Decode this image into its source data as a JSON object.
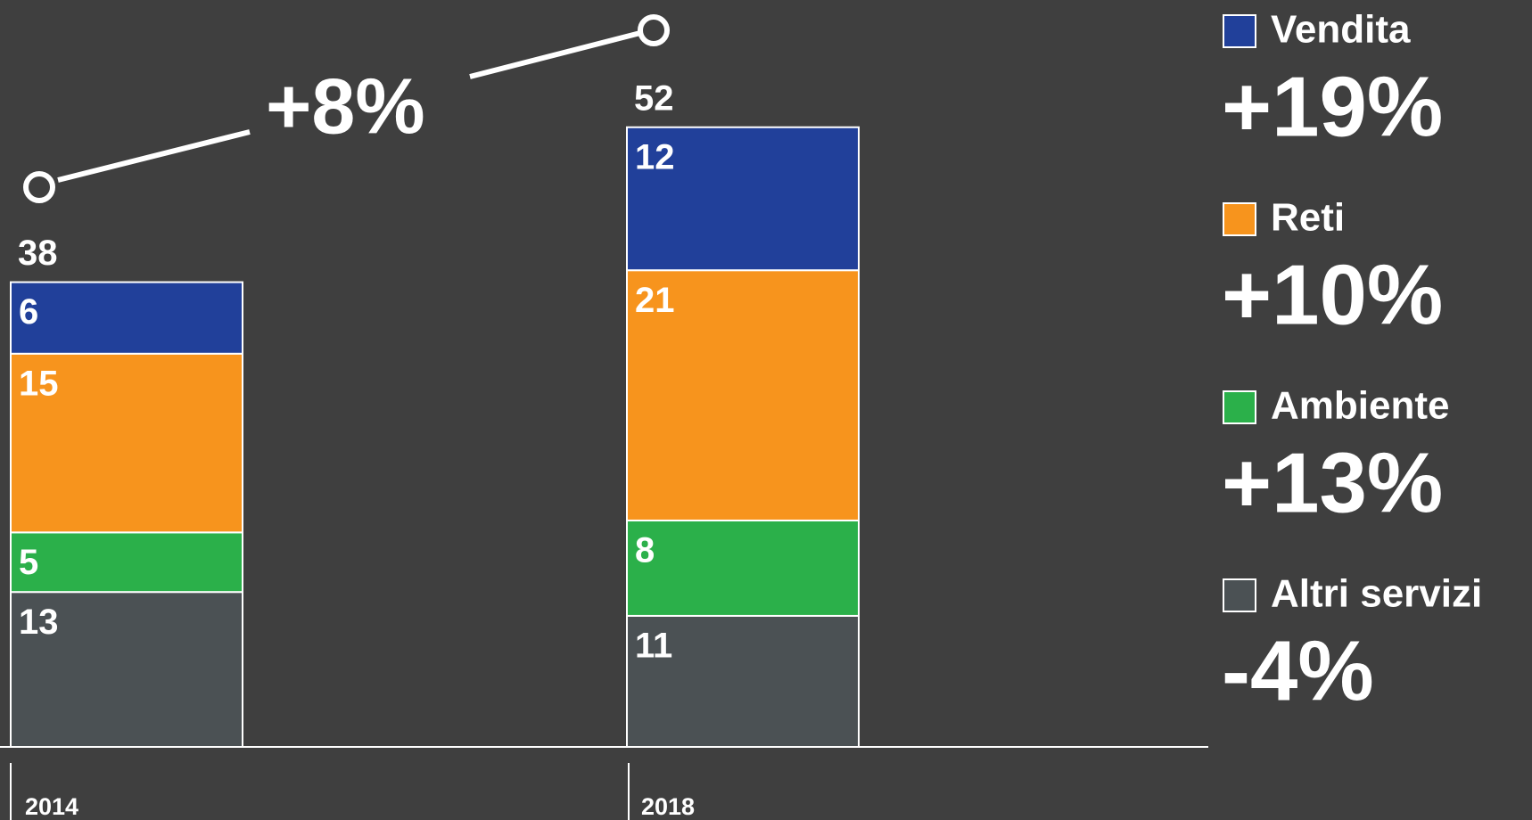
{
  "chart_data": {
    "type": "stacked-bar",
    "categories": [
      "2014",
      "2018"
    ],
    "series": [
      {
        "name": "Vendita",
        "color": "#21409a",
        "values": [
          6,
          12
        ],
        "growth": "+19%"
      },
      {
        "name": "Reti",
        "color": "#f7941d",
        "values": [
          15,
          21
        ],
        "growth": "+10%"
      },
      {
        "name": "Ambiente",
        "color": "#2bb04a",
        "values": [
          5,
          8
        ],
        "growth": "+13%"
      },
      {
        "name": "Altri servizi",
        "color": "#4b5154",
        "values": [
          13,
          11
        ],
        "growth": "-4%"
      }
    ],
    "totals": [
      38,
      52
    ],
    "annotation": "+8%"
  }
}
